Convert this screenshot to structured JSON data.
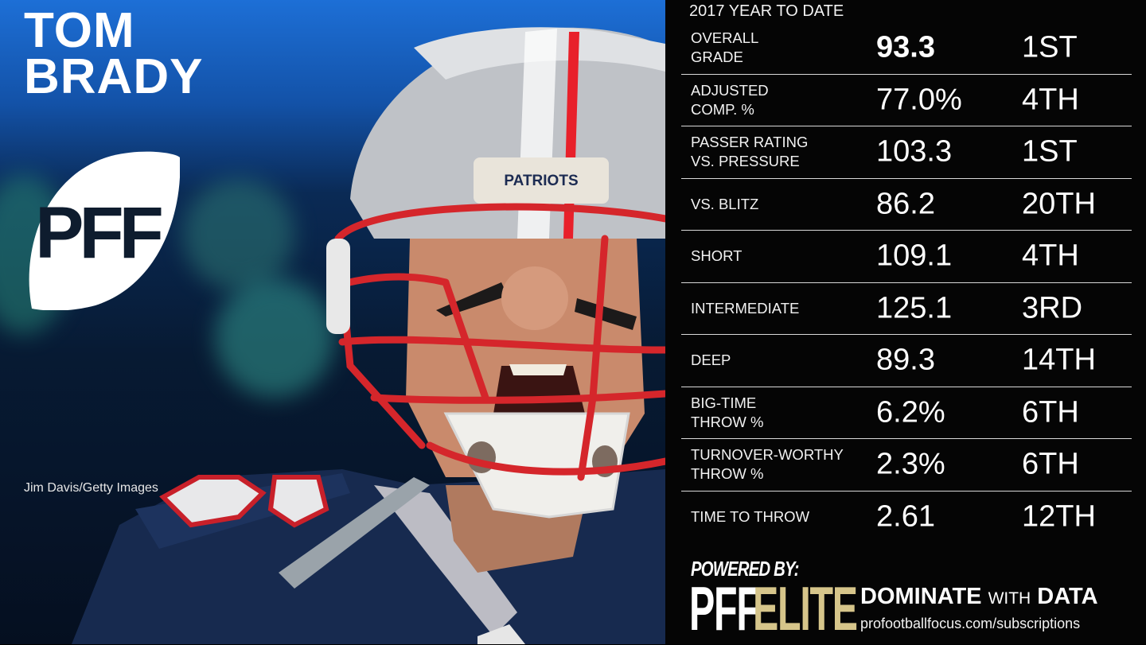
{
  "player": {
    "first": "TOM",
    "last": "BRADY"
  },
  "logo": {
    "text": "PFF"
  },
  "photo_credit": "Jim Davis/Getty Images",
  "panel": {
    "title": "2017 YEAR TO DATE",
    "rows": [
      {
        "label": "OVERALL\nGRADE",
        "value": "93.3",
        "rank": "1ST"
      },
      {
        "label": "ADJUSTED\nCOMP. %",
        "value": "77.0%",
        "rank": "4TH"
      },
      {
        "label": "PASSER RATING\nVS. PRESSURE",
        "value": "103.3",
        "rank": "1ST"
      },
      {
        "label": "VS. BLITZ",
        "value": "86.2",
        "rank": "20TH"
      },
      {
        "label": "SHORT",
        "value": "109.1",
        "rank": "4TH"
      },
      {
        "label": "INTERMEDIATE",
        "value": "125.1",
        "rank": "3RD"
      },
      {
        "label": "DEEP",
        "value": "89.3",
        "rank": "14TH"
      },
      {
        "label": "BIG-TIME\nTHROW %",
        "value": "6.2%",
        "rank": "6TH"
      },
      {
        "label": "TURNOVER-WORTHY\nTHROW %",
        "value": "2.3%",
        "rank": "6TH"
      },
      {
        "label": "TIME TO THROW",
        "value": "2.61",
        "rank": "12TH"
      }
    ]
  },
  "footer": {
    "powered_by": "POWERED BY:",
    "brand_pff": "PFF",
    "brand_elite": "ELITE",
    "tagline_a": "DOMINATE",
    "tagline_with": "WITH",
    "tagline_b": "DATA",
    "url": "profootballfocus.com/subscriptions"
  },
  "colors": {
    "panel_bg": "#050505",
    "elite_gold": "#d6c58a",
    "photo_blue": "#1d6fd6",
    "helmet_red": "#d5262b"
  }
}
